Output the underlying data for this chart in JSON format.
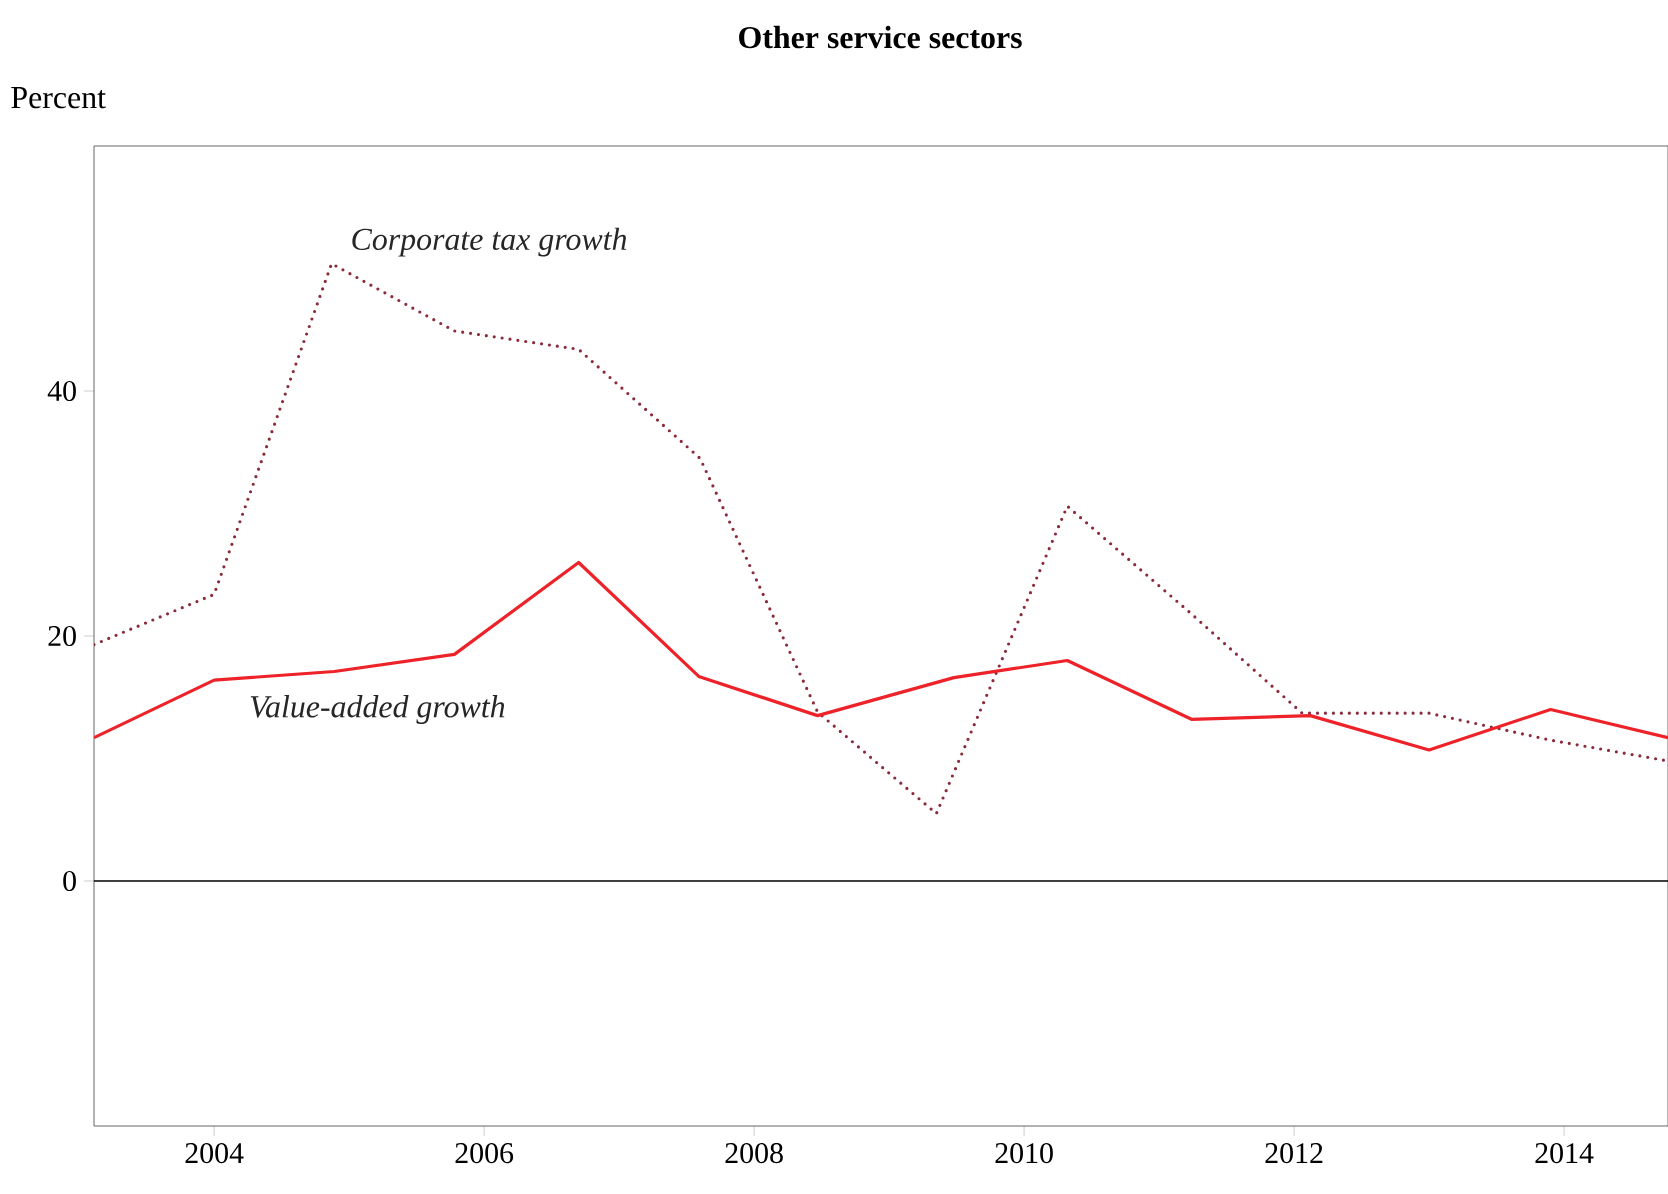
{
  "chart_data": {
    "type": "line",
    "title": "Other service sectors",
    "ylabel": "Percent",
    "xlim": [
      2003.11,
      2014.77
    ],
    "xticks": [
      2004,
      2006,
      2008,
      2010,
      2012,
      2014
    ],
    "ylim": [
      -20,
      60
    ],
    "yticks": [
      0,
      20,
      40
    ],
    "grid": false,
    "marker": "none",
    "ref_lines": [
      {
        "axis": "y",
        "value": 0,
        "color": "#000000"
      }
    ],
    "series": [
      {
        "name": "Corporate tax growth",
        "color": "#8b2a3a",
        "line_style": "dotted",
        "x": [
          2003.11,
          2004.0,
          2004.87,
          2005.78,
          2006.7,
          2007.6,
          2008.47,
          2009.35,
          2010.32,
          2011.24,
          2012.06,
          2013.0,
          2013.9,
          2014.77
        ],
        "values": [
          19.3,
          23.4,
          50.4,
          44.9,
          43.4,
          34.5,
          13.8,
          5.5,
          30.6,
          21.8,
          13.7,
          13.7,
          11.5,
          9.8
        ]
      },
      {
        "name": "Value-added growth",
        "color": "#ee2229",
        "line_style": "solid",
        "x": [
          2003.11,
          2004.0,
          2004.89,
          2005.78,
          2006.7,
          2007.59,
          2008.47,
          2009.48,
          2010.32,
          2011.24,
          2012.12,
          2013.0,
          2013.9,
          2014.77
        ],
        "values": [
          11.7,
          16.4,
          17.1,
          18.5,
          26.0,
          16.7,
          13.5,
          16.6,
          18.0,
          13.2,
          13.5,
          10.7,
          14.0,
          11.7
        ]
      }
    ]
  }
}
